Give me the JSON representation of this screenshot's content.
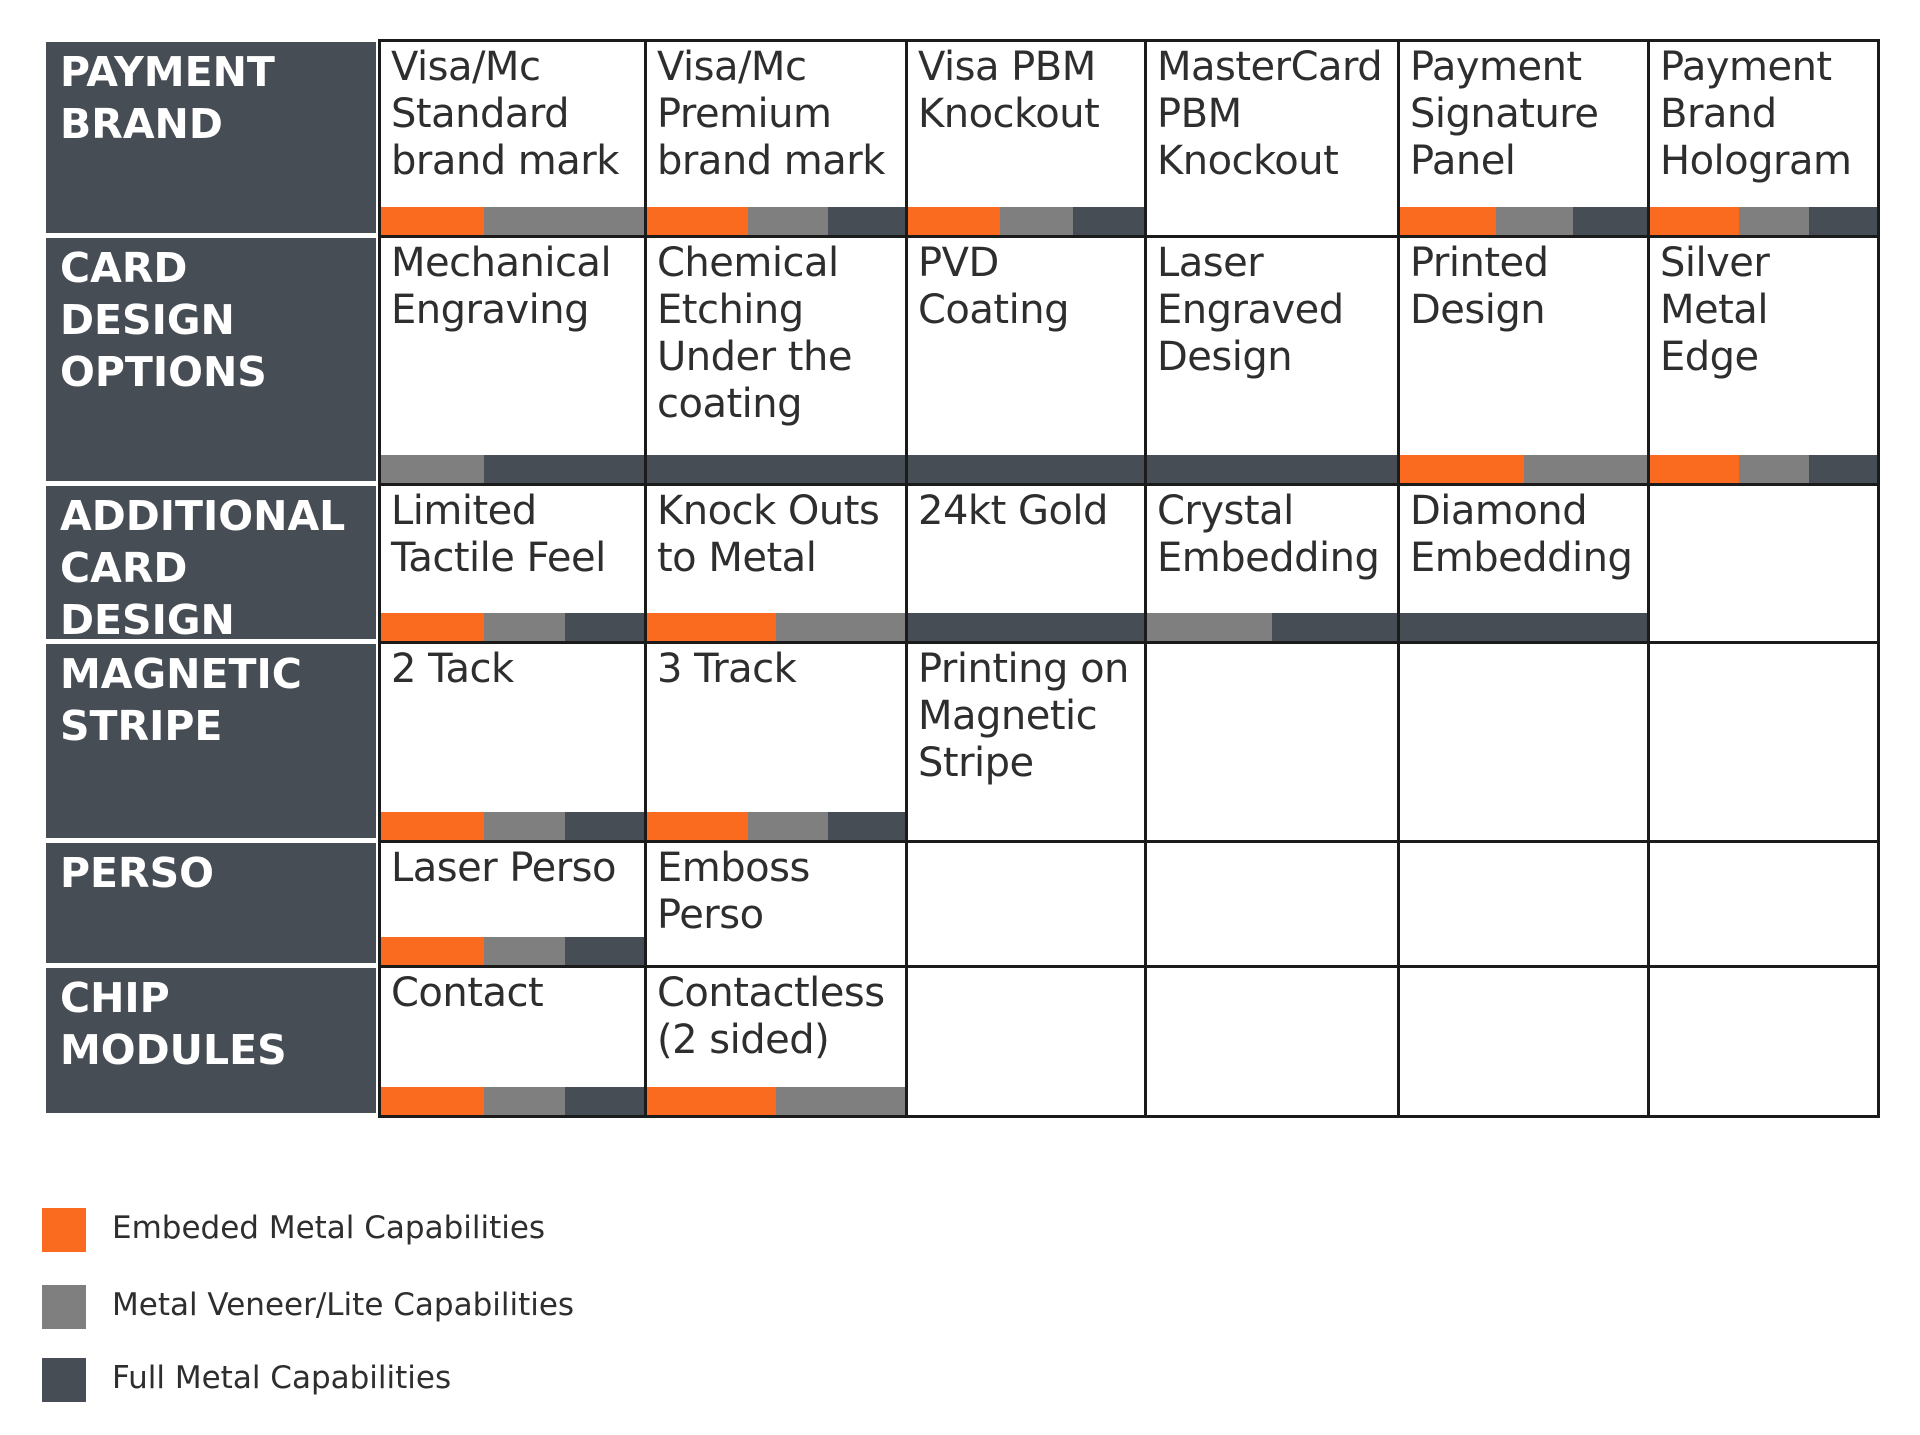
{
  "colors": {
    "embedded": "#fb6b1f",
    "veneer": "#7f7f7f",
    "full": "#464d54",
    "header_bg": "#464d54",
    "grid_line": "#1b1b1b"
  },
  "table": {
    "columns": 6,
    "rows": [
      {
        "header": "PAYMENT\nBRAND",
        "cells": [
          {
            "text": "Visa/Mc\nStandard\nbrand mark",
            "bar": [
              "embedded",
              "veneer",
              "veneer"
            ]
          },
          {
            "text": "Visa/Mc\nPremium\nbrand mark",
            "bar": [
              "embedded",
              "veneer",
              "full"
            ]
          },
          {
            "text": "Visa PBM\nKnockout",
            "bar": [
              "embedded",
              "veneer",
              "full"
            ]
          },
          {
            "text": "MasterCard\nPBM\nKnockout",
            "bar": []
          },
          {
            "text": "Payment\nSignature\nPanel",
            "bar": [
              "embedded",
              "veneer",
              "full"
            ]
          },
          {
            "text": "Payment\nBrand\nHologram",
            "bar": [
              "embedded",
              "veneer",
              "full"
            ]
          }
        ]
      },
      {
        "header": "CARD DESIGN\nOPTIONS",
        "cells": [
          {
            "text": "Mechanical\nEngraving",
            "bar": [
              "veneer",
              "full",
              "full"
            ]
          },
          {
            "text": "Chemical\nEtching\nUnder the\ncoating",
            "bar": [
              "full"
            ]
          },
          {
            "text": "PVD\nCoating",
            "bar": [
              "full"
            ]
          },
          {
            "text": "Laser\nEngraved\nDesign",
            "bar": [
              "full"
            ]
          },
          {
            "text": "Printed\nDesign",
            "bar": [
              "embedded",
              "veneer"
            ]
          },
          {
            "text": "Silver\nMetal\nEdge",
            "bar": [
              "embedded",
              "veneer",
              "full"
            ]
          }
        ]
      },
      {
        "header": "ADDITIONAL\nCARD DESIGN\nOPTIONS",
        "cells": [
          {
            "text": "Limited\nTactile Feel",
            "bar": [
              "embedded",
              "veneer",
              "full"
            ]
          },
          {
            "text": "Knock Outs\nto Metal",
            "bar": [
              "embedded",
              "veneer"
            ]
          },
          {
            "text": "24kt Gold",
            "bar": [
              "full"
            ]
          },
          {
            "text": "Crystal\nEmbedding",
            "bar": [
              "veneer",
              "full"
            ]
          },
          {
            "text": "Diamond\nEmbedding",
            "bar": [
              "full"
            ]
          },
          {
            "text": "",
            "bar": []
          }
        ]
      },
      {
        "header": "MAGNETIC\nSTRIPE",
        "cells": [
          {
            "text": "2 Tack",
            "bar": [
              "embedded",
              "veneer",
              "full"
            ]
          },
          {
            "text": "3 Track",
            "bar": [
              "embedded",
              "veneer",
              "full"
            ]
          },
          {
            "text": "Printing on\nMagnetic\nStripe",
            "bar": []
          },
          {
            "text": "",
            "bar": []
          },
          {
            "text": "",
            "bar": []
          },
          {
            "text": "",
            "bar": []
          }
        ]
      },
      {
        "header": "PERSO",
        "cells": [
          {
            "text": "Laser Perso",
            "bar": [
              "embedded",
              "veneer",
              "full"
            ]
          },
          {
            "text": "Emboss\nPerso",
            "bar": []
          },
          {
            "text": "",
            "bar": []
          },
          {
            "text": "",
            "bar": []
          },
          {
            "text": "",
            "bar": []
          },
          {
            "text": "",
            "bar": []
          }
        ]
      },
      {
        "header": "CHIP\nMODULES",
        "cells": [
          {
            "text": "Contact",
            "bar": [
              "embedded",
              "veneer",
              "full"
            ]
          },
          {
            "text": "Contactless\n(2 sided)",
            "bar": [
              "embedded",
              "veneer"
            ]
          },
          {
            "text": "",
            "bar": []
          },
          {
            "text": "",
            "bar": []
          },
          {
            "text": "",
            "bar": []
          },
          {
            "text": "",
            "bar": []
          }
        ]
      }
    ]
  },
  "legend": [
    {
      "key": "embedded",
      "label": "Embeded Metal Capabilities"
    },
    {
      "key": "veneer",
      "label": "Metal Veneer/Lite Capabilities"
    },
    {
      "key": "full",
      "label": "Full Metal Capabilities"
    }
  ]
}
